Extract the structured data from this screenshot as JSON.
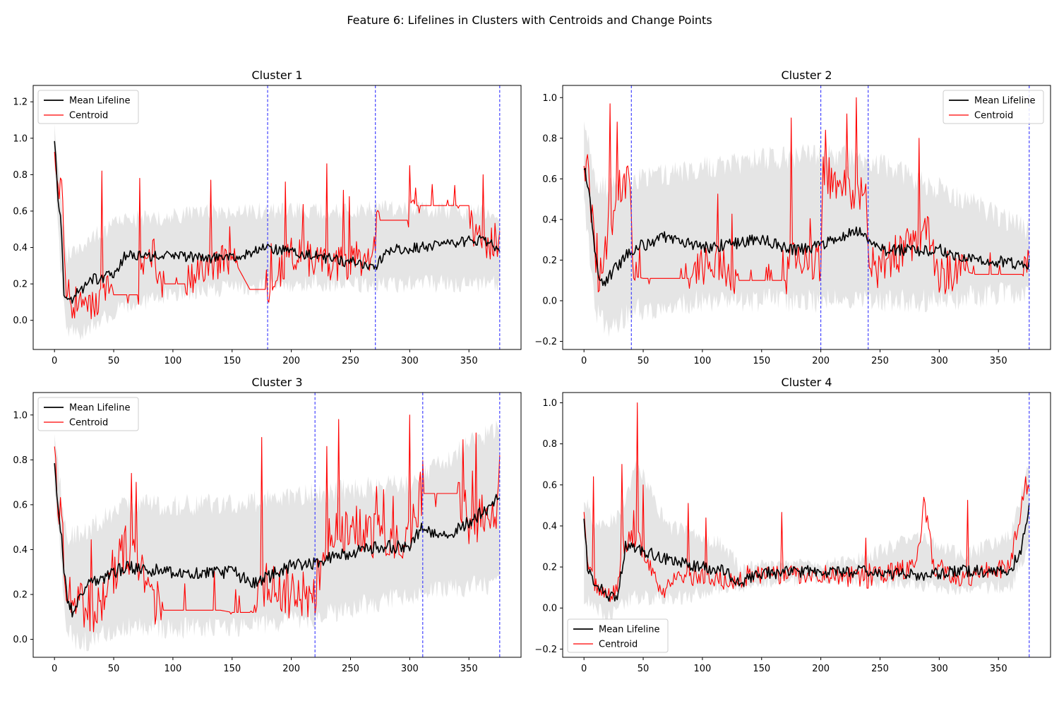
{
  "figure_title": "Feature 6: Lifelines in Clusters with Centroids and Change Points",
  "colors": {
    "mean": "#000000",
    "centroid": "#ff0000",
    "band": "#d3d3d3",
    "change_point": "#3333ff"
  },
  "chart_data": [
    {
      "type": "line",
      "title": "Cluster 1",
      "x_range": [
        0,
        376
      ],
      "xlim": [
        -18,
        394
      ],
      "ylim": [
        -0.16,
        1.29
      ],
      "xticks": [
        0,
        50,
        100,
        150,
        200,
        250,
        300,
        350
      ],
      "yticks": [
        0.0,
        0.2,
        0.4,
        0.6,
        0.8,
        1.0,
        1.2
      ],
      "ytick_labels": [
        "0.0",
        "0.2",
        "0.4",
        "0.6",
        "0.8",
        "1.0",
        "1.2"
      ],
      "legend_position": "upper-left",
      "series": [
        {
          "name": "Mean Lifeline",
          "key": "mean"
        },
        {
          "name": "Centroid",
          "key": "centroid"
        }
      ],
      "change_points": [
        180,
        271,
        376
      ],
      "mean_knots": [
        [
          0,
          1.0
        ],
        [
          3,
          0.65
        ],
        [
          5,
          0.6
        ],
        [
          8,
          0.15
        ],
        [
          15,
          0.12
        ],
        [
          30,
          0.22
        ],
        [
          50,
          0.25
        ],
        [
          60,
          0.36
        ],
        [
          100,
          0.35
        ],
        [
          150,
          0.34
        ],
        [
          180,
          0.4
        ],
        [
          230,
          0.34
        ],
        [
          271,
          0.3
        ],
        [
          280,
          0.38
        ],
        [
          330,
          0.42
        ],
        [
          360,
          0.44
        ],
        [
          376,
          0.4
        ]
      ],
      "mean_noise": 0.03,
      "band_upper_knots": [
        [
          0,
          1.1
        ],
        [
          5,
          0.7
        ],
        [
          10,
          0.35
        ],
        [
          30,
          0.45
        ],
        [
          60,
          0.55
        ],
        [
          150,
          0.6
        ],
        [
          250,
          0.6
        ],
        [
          300,
          0.62
        ],
        [
          376,
          0.58
        ]
      ],
      "band_lower_knots": [
        [
          0,
          0.85
        ],
        [
          5,
          0.3
        ],
        [
          10,
          -0.05
        ],
        [
          20,
          -0.08
        ],
        [
          50,
          0.05
        ],
        [
          100,
          0.15
        ],
        [
          200,
          0.2
        ],
        [
          300,
          0.2
        ],
        [
          376,
          0.2
        ]
      ],
      "band_noise": 0.05,
      "centroid_knots": [
        [
          0,
          1.0
        ],
        [
          3,
          0.7
        ],
        [
          6,
          0.85
        ],
        [
          8,
          0.3
        ],
        [
          12,
          0.1
        ],
        [
          35,
          0.08
        ],
        [
          45,
          0.2
        ],
        [
          50,
          0.14
        ],
        [
          70,
          0.14
        ],
        [
          75,
          0.3
        ],
        [
          85,
          0.35
        ],
        [
          90,
          0.2
        ],
        [
          110,
          0.2
        ],
        [
          150,
          0.35
        ],
        [
          165,
          0.17
        ],
        [
          180,
          0.17
        ],
        [
          200,
          0.35
        ],
        [
          240,
          0.3
        ],
        [
          270,
          0.35
        ],
        [
          272,
          0.55
        ],
        [
          300,
          0.55
        ],
        [
          305,
          0.63
        ],
        [
          350,
          0.63
        ],
        [
          355,
          0.45
        ],
        [
          376,
          0.38
        ]
      ],
      "centroid_flat": [
        [
          50,
          70
        ],
        [
          92,
          110
        ],
        [
          155,
          178
        ],
        [
          275,
          298
        ],
        [
          306,
          350
        ]
      ],
      "centroid_noise": 0.1,
      "spikes": [
        [
          40,
          0.82
        ],
        [
          72,
          0.78
        ],
        [
          132,
          0.77
        ],
        [
          195,
          0.76
        ],
        [
          230,
          0.86
        ],
        [
          300,
          0.85
        ],
        [
          362,
          0.8
        ]
      ],
      "seed": 11
    },
    {
      "type": "line",
      "title": "Cluster 2",
      "x_range": [
        0,
        376
      ],
      "xlim": [
        -18,
        394
      ],
      "ylim": [
        -0.24,
        1.06
      ],
      "xticks": [
        0,
        50,
        100,
        150,
        200,
        250,
        300,
        350
      ],
      "yticks": [
        -0.2,
        0.0,
        0.2,
        0.4,
        0.6,
        0.8,
        1.0
      ],
      "ytick_labels": [
        "−0.2",
        "0.0",
        "0.2",
        "0.4",
        "0.6",
        "0.8",
        "1.0"
      ],
      "legend_position": "upper-right",
      "series": [
        {
          "name": "Mean Lifeline",
          "key": "mean"
        },
        {
          "name": "Centroid",
          "key": "centroid"
        }
      ],
      "change_points": [
        40,
        200,
        240,
        376
      ],
      "mean_knots": [
        [
          0,
          0.66
        ],
        [
          4,
          0.55
        ],
        [
          10,
          0.2
        ],
        [
          15,
          0.08
        ],
        [
          25,
          0.15
        ],
        [
          40,
          0.25
        ],
        [
          70,
          0.32
        ],
        [
          100,
          0.26
        ],
        [
          150,
          0.3
        ],
        [
          180,
          0.25
        ],
        [
          200,
          0.27
        ],
        [
          230,
          0.35
        ],
        [
          240,
          0.3
        ],
        [
          250,
          0.25
        ],
        [
          300,
          0.25
        ],
        [
          330,
          0.2
        ],
        [
          376,
          0.18
        ]
      ],
      "mean_noise": 0.03,
      "band_upper_knots": [
        [
          0,
          0.9
        ],
        [
          10,
          0.6
        ],
        [
          20,
          0.55
        ],
        [
          40,
          0.6
        ],
        [
          100,
          0.65
        ],
        [
          150,
          0.7
        ],
        [
          200,
          0.72
        ],
        [
          240,
          0.7
        ],
        [
          300,
          0.55
        ],
        [
          376,
          0.35
        ]
      ],
      "band_lower_knots": [
        [
          0,
          0.5
        ],
        [
          10,
          -0.05
        ],
        [
          20,
          -0.15
        ],
        [
          40,
          -0.05
        ],
        [
          100,
          0.0
        ],
        [
          200,
          0.0
        ],
        [
          300,
          0.0
        ],
        [
          376,
          0.05
        ]
      ],
      "band_noise": 0.06,
      "centroid_knots": [
        [
          0,
          0.65
        ],
        [
          4,
          0.6
        ],
        [
          8,
          0.3
        ],
        [
          12,
          0.05
        ],
        [
          20,
          0.3
        ],
        [
          30,
          0.55
        ],
        [
          38,
          0.6
        ],
        [
          42,
          0.12
        ],
        [
          50,
          0.11
        ],
        [
          90,
          0.11
        ],
        [
          110,
          0.2
        ],
        [
          125,
          0.1
        ],
        [
          170,
          0.1
        ],
        [
          175,
          0.2
        ],
        [
          200,
          0.18
        ],
        [
          202,
          0.6
        ],
        [
          238,
          0.5
        ],
        [
          242,
          0.1
        ],
        [
          260,
          0.2
        ],
        [
          290,
          0.35
        ],
        [
          300,
          0.1
        ],
        [
          320,
          0.15
        ],
        [
          330,
          0.13
        ],
        [
          370,
          0.13
        ],
        [
          376,
          0.2
        ]
      ],
      "centroid_flat": [
        [
          45,
          90
        ],
        [
          130,
          170
        ],
        [
          325,
          370
        ]
      ],
      "centroid_noise": 0.1,
      "spikes": [
        [
          22,
          0.97
        ],
        [
          28,
          0.88
        ],
        [
          175,
          0.9
        ],
        [
          222,
          0.92
        ],
        [
          230,
          1.0
        ],
        [
          283,
          0.8
        ],
        [
          204,
          0.84
        ]
      ],
      "seed": 23
    },
    {
      "type": "line",
      "title": "Cluster 3",
      "x_range": [
        0,
        376
      ],
      "xlim": [
        -18,
        394
      ],
      "ylim": [
        -0.08,
        1.1
      ],
      "xticks": [
        0,
        50,
        100,
        150,
        200,
        250,
        300,
        350
      ],
      "yticks": [
        0.0,
        0.2,
        0.4,
        0.6,
        0.8,
        1.0
      ],
      "ytick_labels": [
        "0.0",
        "0.2",
        "0.4",
        "0.6",
        "0.8",
        "1.0"
      ],
      "legend_position": "upper-left",
      "series": [
        {
          "name": "Mean Lifeline",
          "key": "mean"
        },
        {
          "name": "Centroid",
          "key": "centroid"
        }
      ],
      "change_points": [
        220,
        311,
        376
      ],
      "mean_knots": [
        [
          0,
          0.8
        ],
        [
          3,
          0.6
        ],
        [
          6,
          0.45
        ],
        [
          10,
          0.2
        ],
        [
          15,
          0.12
        ],
        [
          30,
          0.25
        ],
        [
          60,
          0.32
        ],
        [
          100,
          0.3
        ],
        [
          150,
          0.3
        ],
        [
          170,
          0.25
        ],
        [
          200,
          0.33
        ],
        [
          220,
          0.34
        ],
        [
          260,
          0.4
        ],
        [
          300,
          0.42
        ],
        [
          311,
          0.5
        ],
        [
          330,
          0.45
        ],
        [
          350,
          0.52
        ],
        [
          376,
          0.63
        ]
      ],
      "mean_noise": 0.03,
      "band_upper_knots": [
        [
          0,
          0.9
        ],
        [
          10,
          0.45
        ],
        [
          30,
          0.5
        ],
        [
          60,
          0.6
        ],
        [
          150,
          0.6
        ],
        [
          220,
          0.65
        ],
        [
          300,
          0.7
        ],
        [
          376,
          0.95
        ]
      ],
      "band_lower_knots": [
        [
          0,
          0.7
        ],
        [
          10,
          0.05
        ],
        [
          20,
          -0.02
        ],
        [
          60,
          0.05
        ],
        [
          150,
          0.05
        ],
        [
          220,
          0.1
        ],
        [
          300,
          0.2
        ],
        [
          376,
          0.25
        ]
      ],
      "band_noise": 0.05,
      "centroid_knots": [
        [
          0,
          0.85
        ],
        [
          3,
          0.55
        ],
        [
          6,
          0.5
        ],
        [
          9,
          0.2
        ],
        [
          15,
          0.15
        ],
        [
          40,
          0.12
        ],
        [
          50,
          0.3
        ],
        [
          60,
          0.4
        ],
        [
          70,
          0.3
        ],
        [
          80,
          0.2
        ],
        [
          90,
          0.13
        ],
        [
          140,
          0.13
        ],
        [
          150,
          0.12
        ],
        [
          170,
          0.12
        ],
        [
          180,
          0.25
        ],
        [
          200,
          0.18
        ],
        [
          220,
          0.2
        ],
        [
          230,
          0.45
        ],
        [
          250,
          0.5
        ],
        [
          270,
          0.45
        ],
        [
          300,
          0.45
        ],
        [
          310,
          0.65
        ],
        [
          340,
          0.65
        ],
        [
          350,
          0.5
        ],
        [
          376,
          0.6
        ]
      ],
      "centroid_flat": [
        [
          92,
          148
        ],
        [
          150,
          170
        ],
        [
          312,
          340
        ]
      ],
      "centroid_noise": 0.11,
      "spikes": [
        [
          65,
          0.74
        ],
        [
          175,
          0.9
        ],
        [
          230,
          0.86
        ],
        [
          240,
          0.98
        ],
        [
          300,
          1.0
        ],
        [
          356,
          0.92
        ],
        [
          376,
          0.82
        ]
      ],
      "seed": 37
    },
    {
      "type": "line",
      "title": "Cluster 4",
      "x_range": [
        0,
        376
      ],
      "xlim": [
        -18,
        394
      ],
      "ylim": [
        -0.24,
        1.05
      ],
      "xticks": [
        0,
        50,
        100,
        150,
        200,
        250,
        300,
        350
      ],
      "yticks": [
        -0.2,
        0.0,
        0.2,
        0.4,
        0.6,
        0.8,
        1.0
      ],
      "ytick_labels": [
        "−0.2",
        "0.0",
        "0.2",
        "0.4",
        "0.6",
        "0.8",
        "1.0"
      ],
      "legend_position": "lower-left",
      "series": [
        {
          "name": "Mean Lifeline",
          "key": "mean"
        },
        {
          "name": "Centroid",
          "key": "centroid"
        }
      ],
      "change_points": [
        376
      ],
      "mean_knots": [
        [
          0,
          0.45
        ],
        [
          3,
          0.2
        ],
        [
          10,
          0.12
        ],
        [
          20,
          0.06
        ],
        [
          28,
          0.05
        ],
        [
          35,
          0.3
        ],
        [
          50,
          0.28
        ],
        [
          80,
          0.22
        ],
        [
          100,
          0.2
        ],
        [
          120,
          0.18
        ],
        [
          130,
          0.12
        ],
        [
          150,
          0.17
        ],
        [
          200,
          0.18
        ],
        [
          240,
          0.18
        ],
        [
          280,
          0.16
        ],
        [
          320,
          0.18
        ],
        [
          360,
          0.18
        ],
        [
          370,
          0.3
        ],
        [
          376,
          0.5
        ]
      ],
      "mean_noise": 0.03,
      "band_upper_knots": [
        [
          0,
          0.55
        ],
        [
          10,
          0.4
        ],
        [
          30,
          0.45
        ],
        [
          45,
          0.7
        ],
        [
          70,
          0.4
        ],
        [
          100,
          0.35
        ],
        [
          120,
          0.3
        ],
        [
          130,
          0.2
        ],
        [
          200,
          0.2
        ],
        [
          240,
          0.25
        ],
        [
          280,
          0.35
        ],
        [
          320,
          0.25
        ],
        [
          360,
          0.35
        ],
        [
          376,
          0.7
        ]
      ],
      "band_lower_knots": [
        [
          0,
          0.05
        ],
        [
          20,
          -0.05
        ],
        [
          40,
          0.05
        ],
        [
          80,
          0.05
        ],
        [
          120,
          0.1
        ],
        [
          130,
          0.12
        ],
        [
          200,
          0.15
        ],
        [
          260,
          0.12
        ],
        [
          300,
          0.1
        ],
        [
          360,
          0.1
        ],
        [
          376,
          0.3
        ]
      ],
      "band_noise": 0.04,
      "centroid_knots": [
        [
          0,
          0.45
        ],
        [
          3,
          0.25
        ],
        [
          10,
          0.1
        ],
        [
          20,
          0.05
        ],
        [
          28,
          0.08
        ],
        [
          32,
          0.3
        ],
        [
          45,
          0.35
        ],
        [
          55,
          0.2
        ],
        [
          65,
          0.08
        ],
        [
          80,
          0.15
        ],
        [
          110,
          0.15
        ],
        [
          125,
          0.12
        ],
        [
          140,
          0.16
        ],
        [
          200,
          0.16
        ],
        [
          240,
          0.14
        ],
        [
          280,
          0.2
        ],
        [
          288,
          0.5
        ],
        [
          295,
          0.2
        ],
        [
          320,
          0.14
        ],
        [
          360,
          0.2
        ],
        [
          370,
          0.5
        ],
        [
          376,
          0.6
        ]
      ],
      "centroid_flat": [],
      "centroid_noise": 0.05,
      "spikes": [
        [
          45,
          1.0
        ],
        [
          32,
          0.7
        ],
        [
          50,
          0.6
        ],
        [
          8,
          0.64
        ],
        [
          287,
          0.54
        ],
        [
          373,
          0.64
        ]
      ],
      "seed": 53
    }
  ]
}
